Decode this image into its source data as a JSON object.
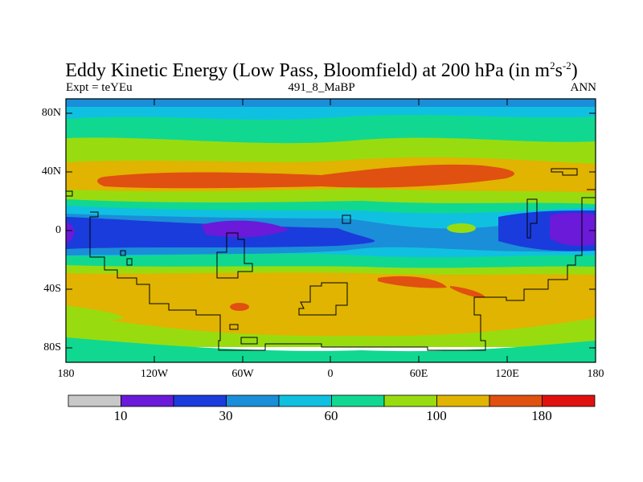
{
  "title": {
    "main": "Eddy Kinetic Energy (Low Pass, Bloomfield) at 200 hPa (in m",
    "sup1": "2",
    "mid": "s",
    "sup2": "-2",
    "end": ")"
  },
  "subtitle": {
    "left": "Expt = teYEu",
    "center": "491_8_MaBP",
    "right": "ANN"
  },
  "axes": {
    "y_ticks": [
      "80N",
      "40N",
      "0",
      "40S",
      "80S"
    ],
    "x_ticks": [
      "180",
      "120W",
      "60W",
      "0",
      "60E",
      "120E",
      "180"
    ]
  },
  "colorbar": {
    "colors": [
      "#c8c8c8",
      "#6a1ad8",
      "#1a3cdc",
      "#1a8ed8",
      "#10c0e0",
      "#10d890",
      "#98dc10",
      "#e0b400",
      "#e05010",
      "#e01010"
    ],
    "labels": [
      "10",
      "30",
      "60",
      "100",
      "180"
    ]
  },
  "colors": {
    "band_polar": "#1a8ed8",
    "band_green": "#10d890",
    "band_lightgreen": "#98dc10",
    "band_yellow": "#e0b400",
    "band_orange": "#e05010",
    "band_cyan": "#10c0e0",
    "band_blue": "#1a3cdc",
    "band_purple": "#6a1ad8"
  }
}
